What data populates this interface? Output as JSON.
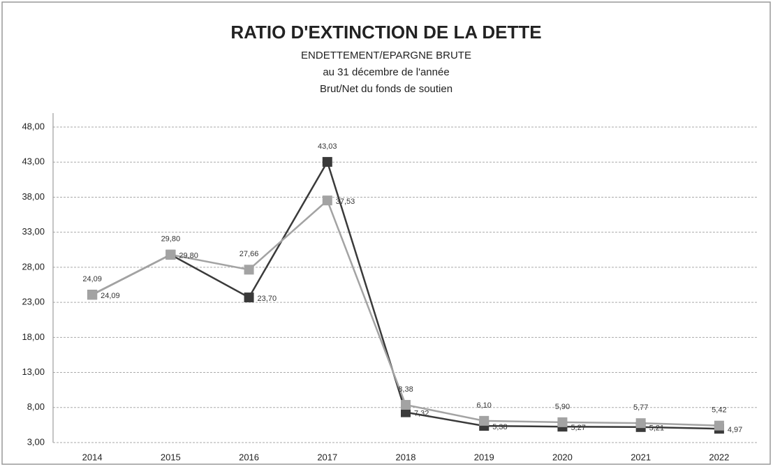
{
  "chart_data": {
    "type": "line",
    "title": "RATIO D'EXTINCTION DE LA DETTE",
    "subtitle": [
      "ENDETTEMENT/EPARGNE BRUTE",
      "au 31 décembre  de l'année",
      "Brut/Net du fonds de soutien"
    ],
    "categories": [
      "2014",
      "2015",
      "2016",
      "2017",
      "2018",
      "2019",
      "2020",
      "2021",
      "2022"
    ],
    "series": [
      {
        "color": "#3a3a3a",
        "values": [
          24.09,
          29.8,
          23.7,
          43.03,
          7.32,
          5.38,
          5.27,
          5.21,
          4.97
        ],
        "value_labels": [
          "24,09",
          "29,80",
          "23,70",
          "43,03",
          "7,32",
          "5,38",
          "5,27",
          "5,21",
          "4,97"
        ]
      },
      {
        "color": "#a3a3a3",
        "values": [
          24.09,
          29.8,
          27.66,
          37.53,
          8.38,
          6.1,
          5.9,
          5.77,
          5.42
        ],
        "value_labels": [
          "24,09",
          "29,80",
          "27,66",
          "37,53",
          "8,38",
          "6,10",
          "5,90",
          "5,77",
          "5,42"
        ]
      }
    ],
    "ylim": [
      3,
      48
    ],
    "yticks": [
      {
        "value": 3,
        "label": "3,00"
      },
      {
        "value": 8,
        "label": "8,00"
      },
      {
        "value": 13,
        "label": "13,00"
      },
      {
        "value": 18,
        "label": "18,00"
      },
      {
        "value": 23,
        "label": "23,00"
      },
      {
        "value": 28,
        "label": "28,00"
      },
      {
        "value": 33,
        "label": "33,00"
      },
      {
        "value": 38,
        "label": "38,00"
      },
      {
        "value": 43,
        "label": "43,00"
      },
      {
        "value": 48,
        "label": "48,00"
      }
    ],
    "grid": true
  }
}
